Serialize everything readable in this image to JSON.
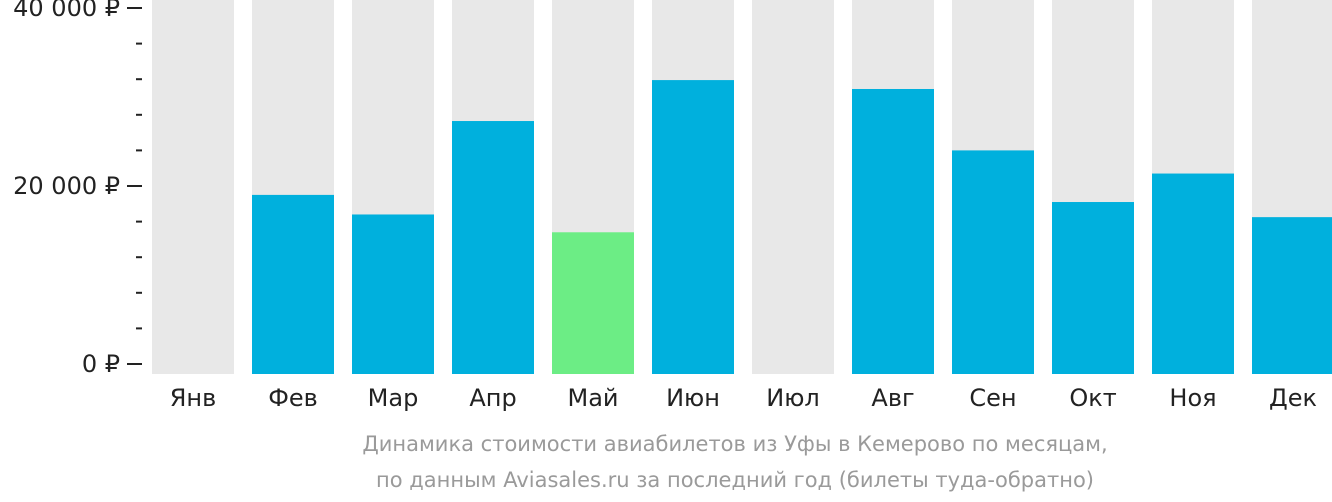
{
  "chart_data": {
    "type": "bar",
    "categories": [
      "Янв",
      "Фев",
      "Мар",
      "Апр",
      "Май",
      "Июн",
      "Июл",
      "Авг",
      "Сен",
      "Окт",
      "Ноя",
      "Дек"
    ],
    "values": [
      null,
      19000,
      16800,
      27300,
      14800,
      31900,
      null,
      30900,
      24000,
      18200,
      21400,
      16500
    ],
    "ylim": [
      0,
      40000
    ],
    "yticks": [
      {
        "value": 0,
        "label": "0 ₽"
      },
      {
        "value": 20000,
        "label": "20 000 ₽"
      },
      {
        "value": 40000,
        "label": "40 000 ₽"
      }
    ],
    "minor_tick_step": 4000,
    "highlight_index": 4,
    "grid": false,
    "colors": {
      "bar": "#00b0dd",
      "highlight": "#6ced85",
      "background_bar": "#e8e8e8",
      "axis": "#222222"
    }
  },
  "caption": {
    "line1": "Динамика стоимости авиабилетов из Уфы в Кемерово по месяцам,",
    "line2": "по данным Aviasales.ru за последний год (билеты туда-обратно)"
  }
}
